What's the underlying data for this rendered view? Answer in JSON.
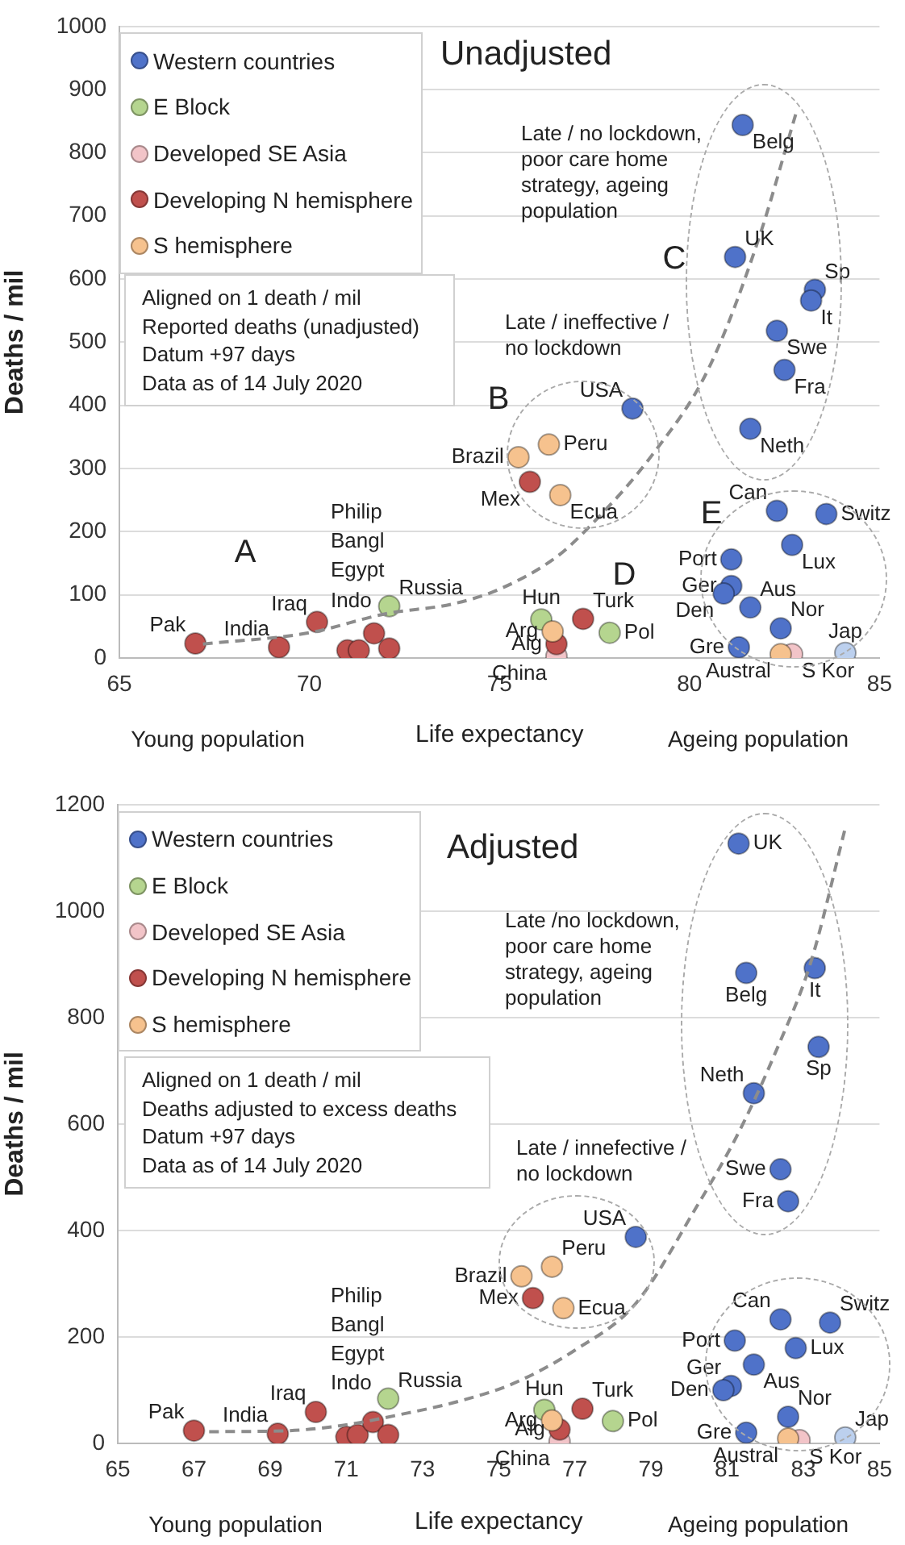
{
  "chart_data": [
    {
      "type": "scatter",
      "title": "Unadjusted",
      "xlabel": "Life expectancy",
      "ylabel": "Deaths / mil",
      "xlim": [
        65,
        85
      ],
      "xticks": [
        65,
        70,
        75,
        80,
        85
      ],
      "ylim": [
        0,
        1000
      ],
      "yticks": [
        0,
        100,
        200,
        300,
        400,
        500,
        600,
        700,
        800,
        900,
        1000
      ],
      "grid": "y",
      "legend": "top left",
      "marker": "circle",
      "series": [
        {
          "name": "Western countries",
          "color": "#4f72c9",
          "x": [
            81.4,
            81.2,
            83.3,
            83.2,
            82.3,
            82.5,
            81.6,
            78.5,
            82.3,
            83.6,
            82.7,
            81.1,
            81.1,
            80.9,
            81.6,
            82.4,
            81.3
          ],
          "values": [
            844,
            635,
            583,
            566,
            518,
            456,
            363,
            395,
            233,
            228,
            179,
            156,
            114,
            102,
            80,
            47,
            17
          ]
        },
        {
          "name": "E Block",
          "color": "#b5d58f",
          "x": [
            72.1,
            76.1,
            77.9
          ],
          "values": [
            82,
            61,
            40
          ]
        },
        {
          "name": "Developed SE Asia",
          "color": "#f2c4c8",
          "x": [
            76.5,
            82.7
          ],
          "values": [
            3,
            6
          ]
        },
        {
          "name": "Developing N hemisphere",
          "color": "#c0504d",
          "x": [
            67.0,
            69.2,
            70.2,
            71.0,
            71.3,
            71.7,
            72.1,
            75.8,
            76.5,
            77.2
          ],
          "values": [
            23,
            17,
            57,
            12,
            12,
            39,
            15,
            279,
            22,
            62
          ]
        },
        {
          "name": "S hemisphere",
          "color": "#f6c28e",
          "x": [
            75.5,
            76.3,
            76.6,
            76.4,
            82.4
          ],
          "values": [
            318,
            338,
            258,
            42,
            6
          ]
        },
        {
          "color": "#bcd0ee",
          "x": [
            84.1
          ],
          "values": [
            8
          ]
        },
        {
          "type": "line",
          "color": "#8c8c8c",
          "line_style": "dashed",
          "marker": "none",
          "x": [
            67.2,
            70,
            72,
            73.8,
            75,
            76.5,
            77.4,
            79,
            80.5,
            81.8,
            82.8
          ],
          "values": [
            22,
            40,
            70,
            86,
            109,
            160,
            210,
            320,
            458,
            660,
            862
          ]
        }
      ],
      "annotations": [
        "Aligned on 1 death / mil",
        "Reported deaths (unadjusted)",
        "Datum +97 days",
        "Data as of 14 July 2020",
        "Late / no lockdown, poor care home strategy, ageing population",
        "Late / ineffective / no lockdown",
        "A",
        "B",
        "C",
        "D",
        "E",
        "Philip",
        "Bangl",
        "Egypt",
        "Indo",
        "Young population",
        "Ageing population",
        {
          "text": "Pak",
          "x": 67.0,
          "y": 23
        },
        {
          "text": "India",
          "x": 69.2,
          "y": 17
        },
        {
          "text": "Iraq",
          "x": 70.2,
          "y": 57
        },
        {
          "text": "Russia",
          "x": 72.1,
          "y": 82
        },
        {
          "text": "Hun",
          "x": 76.1,
          "y": 61
        },
        {
          "text": "Arg",
          "x": 76.4,
          "y": 42
        },
        {
          "text": "Alg",
          "x": 76.5,
          "y": 22
        },
        {
          "text": "China",
          "x": 76.5,
          "y": 3
        },
        {
          "text": "Turk",
          "x": 77.2,
          "y": 62
        },
        {
          "text": "Pol",
          "x": 77.9,
          "y": 40
        },
        {
          "text": "USA",
          "x": 78.5,
          "y": 395
        },
        {
          "text": "Brazil",
          "x": 75.5,
          "y": 318
        },
        {
          "text": "Peru",
          "x": 76.3,
          "y": 338
        },
        {
          "text": "Mex",
          "x": 75.8,
          "y": 279
        },
        {
          "text": "Ecua",
          "x": 76.6,
          "y": 258
        },
        {
          "text": "Belg",
          "x": 81.4,
          "y": 844
        },
        {
          "text": "UK",
          "x": 81.2,
          "y": 635
        },
        {
          "text": "Sp",
          "x": 83.3,
          "y": 583
        },
        {
          "text": "It",
          "x": 83.2,
          "y": 566
        },
        {
          "text": "Swe",
          "x": 82.3,
          "y": 518
        },
        {
          "text": "Fra",
          "x": 82.5,
          "y": 456
        },
        {
          "text": "Neth",
          "x": 81.6,
          "y": 363
        },
        {
          "text": "Can",
          "x": 82.3,
          "y": 233
        },
        {
          "text": "Switz",
          "x": 83.6,
          "y": 228
        },
        {
          "text": "Lux",
          "x": 82.7,
          "y": 179
        },
        {
          "text": "Port",
          "x": 81.1,
          "y": 156
        },
        {
          "text": "Ger",
          "x": 81.1,
          "y": 114
        },
        {
          "text": "Den",
          "x": 80.9,
          "y": 102
        },
        {
          "text": "Aus",
          "x": 81.6,
          "y": 80
        },
        {
          "text": "Nor",
          "x": 82.4,
          "y": 47
        },
        {
          "text": "Gre",
          "x": 81.3,
          "y": 17
        },
        {
          "text": "Austral",
          "x": 82.4,
          "y": 6
        },
        {
          "text": "S Kor",
          "x": 82.7,
          "y": 6
        },
        {
          "text": "Jap",
          "x": 84.1,
          "y": 8
        }
      ]
    },
    {
      "type": "scatter",
      "title": "Adjusted",
      "xlabel": "Life expectancy",
      "ylabel": "Deaths / mil",
      "xlim": [
        65,
        85
      ],
      "xticks": [
        65,
        67,
        69,
        71,
        73,
        75,
        77,
        79,
        81,
        83,
        85
      ],
      "ylim": [
        0,
        1200
      ],
      "yticks": [
        0,
        200,
        400,
        600,
        800,
        1000,
        1200
      ],
      "grid": "y",
      "legend": "top left",
      "marker": "circle",
      "series": [
        {
          "name": "Western countries",
          "color": "#4f72c9",
          "x": [
            81.3,
            81.5,
            83.3,
            83.4,
            81.7,
            82.4,
            82.6,
            78.6,
            82.4,
            83.7,
            82.8,
            81.2,
            81.1,
            80.9,
            81.7,
            82.6,
            81.5
          ],
          "values": [
            1127,
            884,
            893,
            745,
            658,
            515,
            455,
            388,
            233,
            227,
            179,
            193,
            108,
            100,
            148,
            50,
            20
          ]
        },
        {
          "name": "E Block",
          "color": "#b5d58f",
          "x": [
            72.1,
            76.2,
            78.0
          ],
          "values": [
            84,
            63,
            42
          ]
        },
        {
          "name": "Developed SE Asia",
          "color": "#f2c4c8",
          "x": [
            76.6,
            82.9
          ],
          "values": [
            4,
            6
          ]
        },
        {
          "name": "Developing N hemisphere",
          "color": "#c0504d",
          "x": [
            67.0,
            69.2,
            70.2,
            71.0,
            71.3,
            71.7,
            72.1,
            75.9,
            76.6,
            77.2
          ],
          "values": [
            24,
            18,
            59,
            12,
            16,
            40,
            16,
            273,
            26,
            65
          ]
        },
        {
          "name": "S hemisphere",
          "color": "#f6c28e",
          "x": [
            75.6,
            76.4,
            76.7,
            76.4,
            82.6
          ],
          "values": [
            314,
            332,
            254,
            43,
            9
          ]
        },
        {
          "color": "#bcd0ee",
          "x": [
            84.1
          ],
          "values": [
            11
          ]
        },
        {
          "type": "line",
          "color": "#8c8c8c",
          "line_style": "dashed",
          "marker": "none",
          "x": [
            67.4,
            69.5,
            71,
            72.4,
            74,
            75.4,
            77,
            78.6,
            80.2,
            81.3,
            82.3,
            83.2,
            84.1
          ],
          "values": [
            22,
            24,
            35,
            54,
            80,
            113,
            175,
            263,
            445,
            584,
            740,
            905,
            1156
          ]
        }
      ],
      "annotations": [
        "Aligned on 1 death / mil",
        "Deaths adjusted to excess deaths",
        "Datum +97 days",
        "Data as of 14 July 2020",
        "Late /no lockdown, poor care home strategy, ageing population",
        "Late / innefective / no lockdown",
        "Philip",
        "Bangl",
        "Egypt",
        "Indo",
        "Young population",
        "Ageing population",
        {
          "text": "Pak",
          "x": 67.0,
          "y": 24
        },
        {
          "text": "India",
          "x": 69.2,
          "y": 18
        },
        {
          "text": "Iraq",
          "x": 70.2,
          "y": 59
        },
        {
          "text": "Russia",
          "x": 72.1,
          "y": 84
        },
        {
          "text": "Hun",
          "x": 76.2,
          "y": 63
        },
        {
          "text": "Arg",
          "x": 76.4,
          "y": 43
        },
        {
          "text": "Alg",
          "x": 76.6,
          "y": 26
        },
        {
          "text": "China",
          "x": 76.6,
          "y": 4
        },
        {
          "text": "Turk",
          "x": 77.2,
          "y": 65
        },
        {
          "text": "Pol",
          "x": 78.0,
          "y": 42
        },
        {
          "text": "USA",
          "x": 78.6,
          "y": 388
        },
        {
          "text": "Brazil",
          "x": 75.6,
          "y": 314
        },
        {
          "text": "Peru",
          "x": 76.4,
          "y": 332
        },
        {
          "text": "Mex",
          "x": 75.9,
          "y": 273
        },
        {
          "text": "Ecua",
          "x": 76.7,
          "y": 254
        },
        {
          "text": "UK",
          "x": 81.3,
          "y": 1127
        },
        {
          "text": "Belg",
          "x": 81.5,
          "y": 884
        },
        {
          "text": "It",
          "x": 83.3,
          "y": 893
        },
        {
          "text": "Sp",
          "x": 83.4,
          "y": 745
        },
        {
          "text": "Neth",
          "x": 81.7,
          "y": 658
        },
        {
          "text": "Swe",
          "x": 82.4,
          "y": 515
        },
        {
          "text": "Fra",
          "x": 82.6,
          "y": 455
        },
        {
          "text": "Can",
          "x": 82.4,
          "y": 233
        },
        {
          "text": "Switz",
          "x": 83.7,
          "y": 227
        },
        {
          "text": "Lux",
          "x": 82.8,
          "y": 179
        },
        {
          "text": "Port",
          "x": 81.2,
          "y": 193
        },
        {
          "text": "Ger",
          "x": 81.1,
          "y": 108
        },
        {
          "text": "Den",
          "x": 80.9,
          "y": 100
        },
        {
          "text": "Aus",
          "x": 81.7,
          "y": 148
        },
        {
          "text": "Nor",
          "x": 82.6,
          "y": 50
        },
        {
          "text": "Gre",
          "x": 81.5,
          "y": 20
        },
        {
          "text": "Austral",
          "x": 82.6,
          "y": 9
        },
        {
          "text": "S Kor",
          "x": 82.9,
          "y": 6
        },
        {
          "text": "Jap",
          "x": 84.1,
          "y": 11
        }
      ]
    }
  ]
}
